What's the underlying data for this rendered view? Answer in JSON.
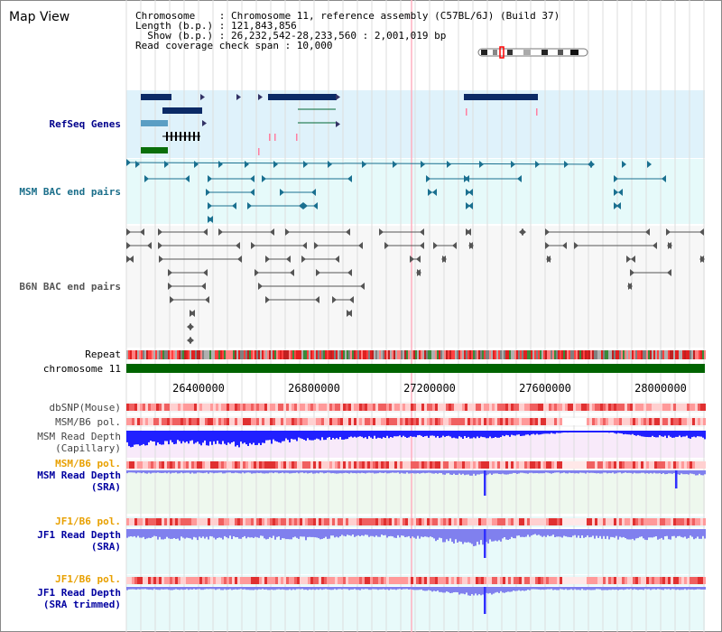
{
  "page": {
    "title": "Map View"
  },
  "info": {
    "lines": [
      "Chromosome    : Chromosome 11, reference assembly (C57BL/6J) (Build 37)",
      "Length (b.p.) : 121,843,856",
      "  Show (b.p.) : 26,232,542-28,233,560 : 2,001,019 bp",
      "Read coverage check span : 10,000"
    ]
  },
  "region": {
    "start": 26232542,
    "end": 28233560
  },
  "ticks": [
    "26400000",
    "26800000",
    "27200000",
    "27600000",
    "28000000"
  ],
  "tracks": [
    {
      "id": "refseq",
      "label": "RefSeq Genes",
      "color": "#00008b",
      "bg": "#dff2fb"
    },
    {
      "id": "msm-bac",
      "label": "MSM BAC end pairs",
      "color": "#1a6e8a",
      "bg": "#e6fafa"
    },
    {
      "id": "b6n-bac",
      "label": "B6N BAC end pairs",
      "color": "#555555",
      "bg": "#f5f5f5"
    },
    {
      "id": "repeat",
      "label": "Repeat",
      "color": "#000000"
    },
    {
      "id": "chromosome",
      "label": "chromosome 11",
      "color": "#000000"
    },
    {
      "id": "dbsnp",
      "label": "dbSNP(Mouse)",
      "color": "#444444",
      "bg": "#f3f3f3"
    },
    {
      "id": "msm-pol-1",
      "label": "MSM/B6 pol.",
      "color": "#444444",
      "bg": "#f3f3f3"
    },
    {
      "id": "msm-depth-cap",
      "label": "MSM Read Depth",
      "label2": "(Capillary)",
      "color": "#444444",
      "bg": "#f8eafa"
    },
    {
      "id": "msm-pol-2",
      "label": "MSM/B6 pol.",
      "color": "#e8a000",
      "bg": "#f8f8f8"
    },
    {
      "id": "msm-depth-sra",
      "label": "MSM Read Depth",
      "label2": "(SRA)",
      "color": "#0000a0",
      "bg": "#eef8ee"
    },
    {
      "id": "jf1-pol-1",
      "label": "JF1/B6 pol.",
      "color": "#e8a000",
      "bg": "#e8fafa"
    },
    {
      "id": "jf1-depth-sra",
      "label": "JF1 Read Depth",
      "label2": "(SRA)",
      "color": "#0000a0",
      "bg": "#e8fafa"
    },
    {
      "id": "jf1-pol-2",
      "label": "JF1/B6 pol.",
      "color": "#e8a000",
      "bg": "#e8fafa"
    },
    {
      "id": "jf1-depth-trim",
      "label": "JF1 Read Depth",
      "label2": "(SRA trimmed)",
      "color": "#0000a0",
      "bg": "#e8fafa"
    }
  ],
  "colors": {
    "gene_dark": "#0b2a66",
    "gene_light": "#5a9ec4",
    "gene_green": "#0a6e0a",
    "msm_bac": "#1a7090",
    "b6n_bac": "#555555",
    "chromosome_bar": "#006400",
    "snp_red": "#f04040",
    "depth_blue": "#2020ff",
    "depth_light": "#8080ee",
    "grid": "#dddddd",
    "highlight": "#ffb0c0"
  },
  "chart_data": [
    {
      "type": "area",
      "title": "MSM Read Depth (Capillary)",
      "x": [
        26232542,
        26432542,
        26632542,
        26832542,
        27032542,
        27232542,
        27432542,
        27632542,
        27832542,
        28032542,
        28233560
      ],
      "values": [
        1.0,
        0.8,
        1.0,
        0.6,
        0.5,
        0.4,
        0.5,
        0.3,
        0.0,
        0.4,
        0.5
      ]
    },
    {
      "type": "area",
      "title": "MSM Read Depth (SRA)",
      "x": [
        26232542,
        26432542,
        26632542,
        26832542,
        27032542,
        27232542,
        27432542,
        27632542,
        27832542,
        28032542,
        28233560
      ],
      "values": [
        0.3,
        0.3,
        0.3,
        0.3,
        0.3,
        0.3,
        0.5,
        0.3,
        0.3,
        0.3,
        0.5
      ]
    },
    {
      "type": "area",
      "title": "JF1 Read Depth (SRA)",
      "x": [
        26232542,
        26432542,
        26632542,
        26832542,
        27032542,
        27232542,
        27432542,
        27632542,
        27832542,
        28032542,
        28233560
      ],
      "values": [
        0.5,
        0.6,
        0.5,
        0.6,
        0.4,
        0.5,
        0.9,
        0.4,
        0.5,
        0.6,
        0.5
      ]
    },
    {
      "type": "area",
      "title": "JF1 Read Depth (SRA trimmed)",
      "x": [
        26232542,
        26432542,
        26632542,
        26832542,
        27032542,
        27232542,
        27432542,
        27632542,
        27832542,
        28032542,
        28233560
      ],
      "values": [
        0.3,
        0.3,
        0.3,
        0.3,
        0.3,
        0.3,
        0.9,
        0.3,
        0.3,
        0.3,
        0.3
      ]
    }
  ]
}
